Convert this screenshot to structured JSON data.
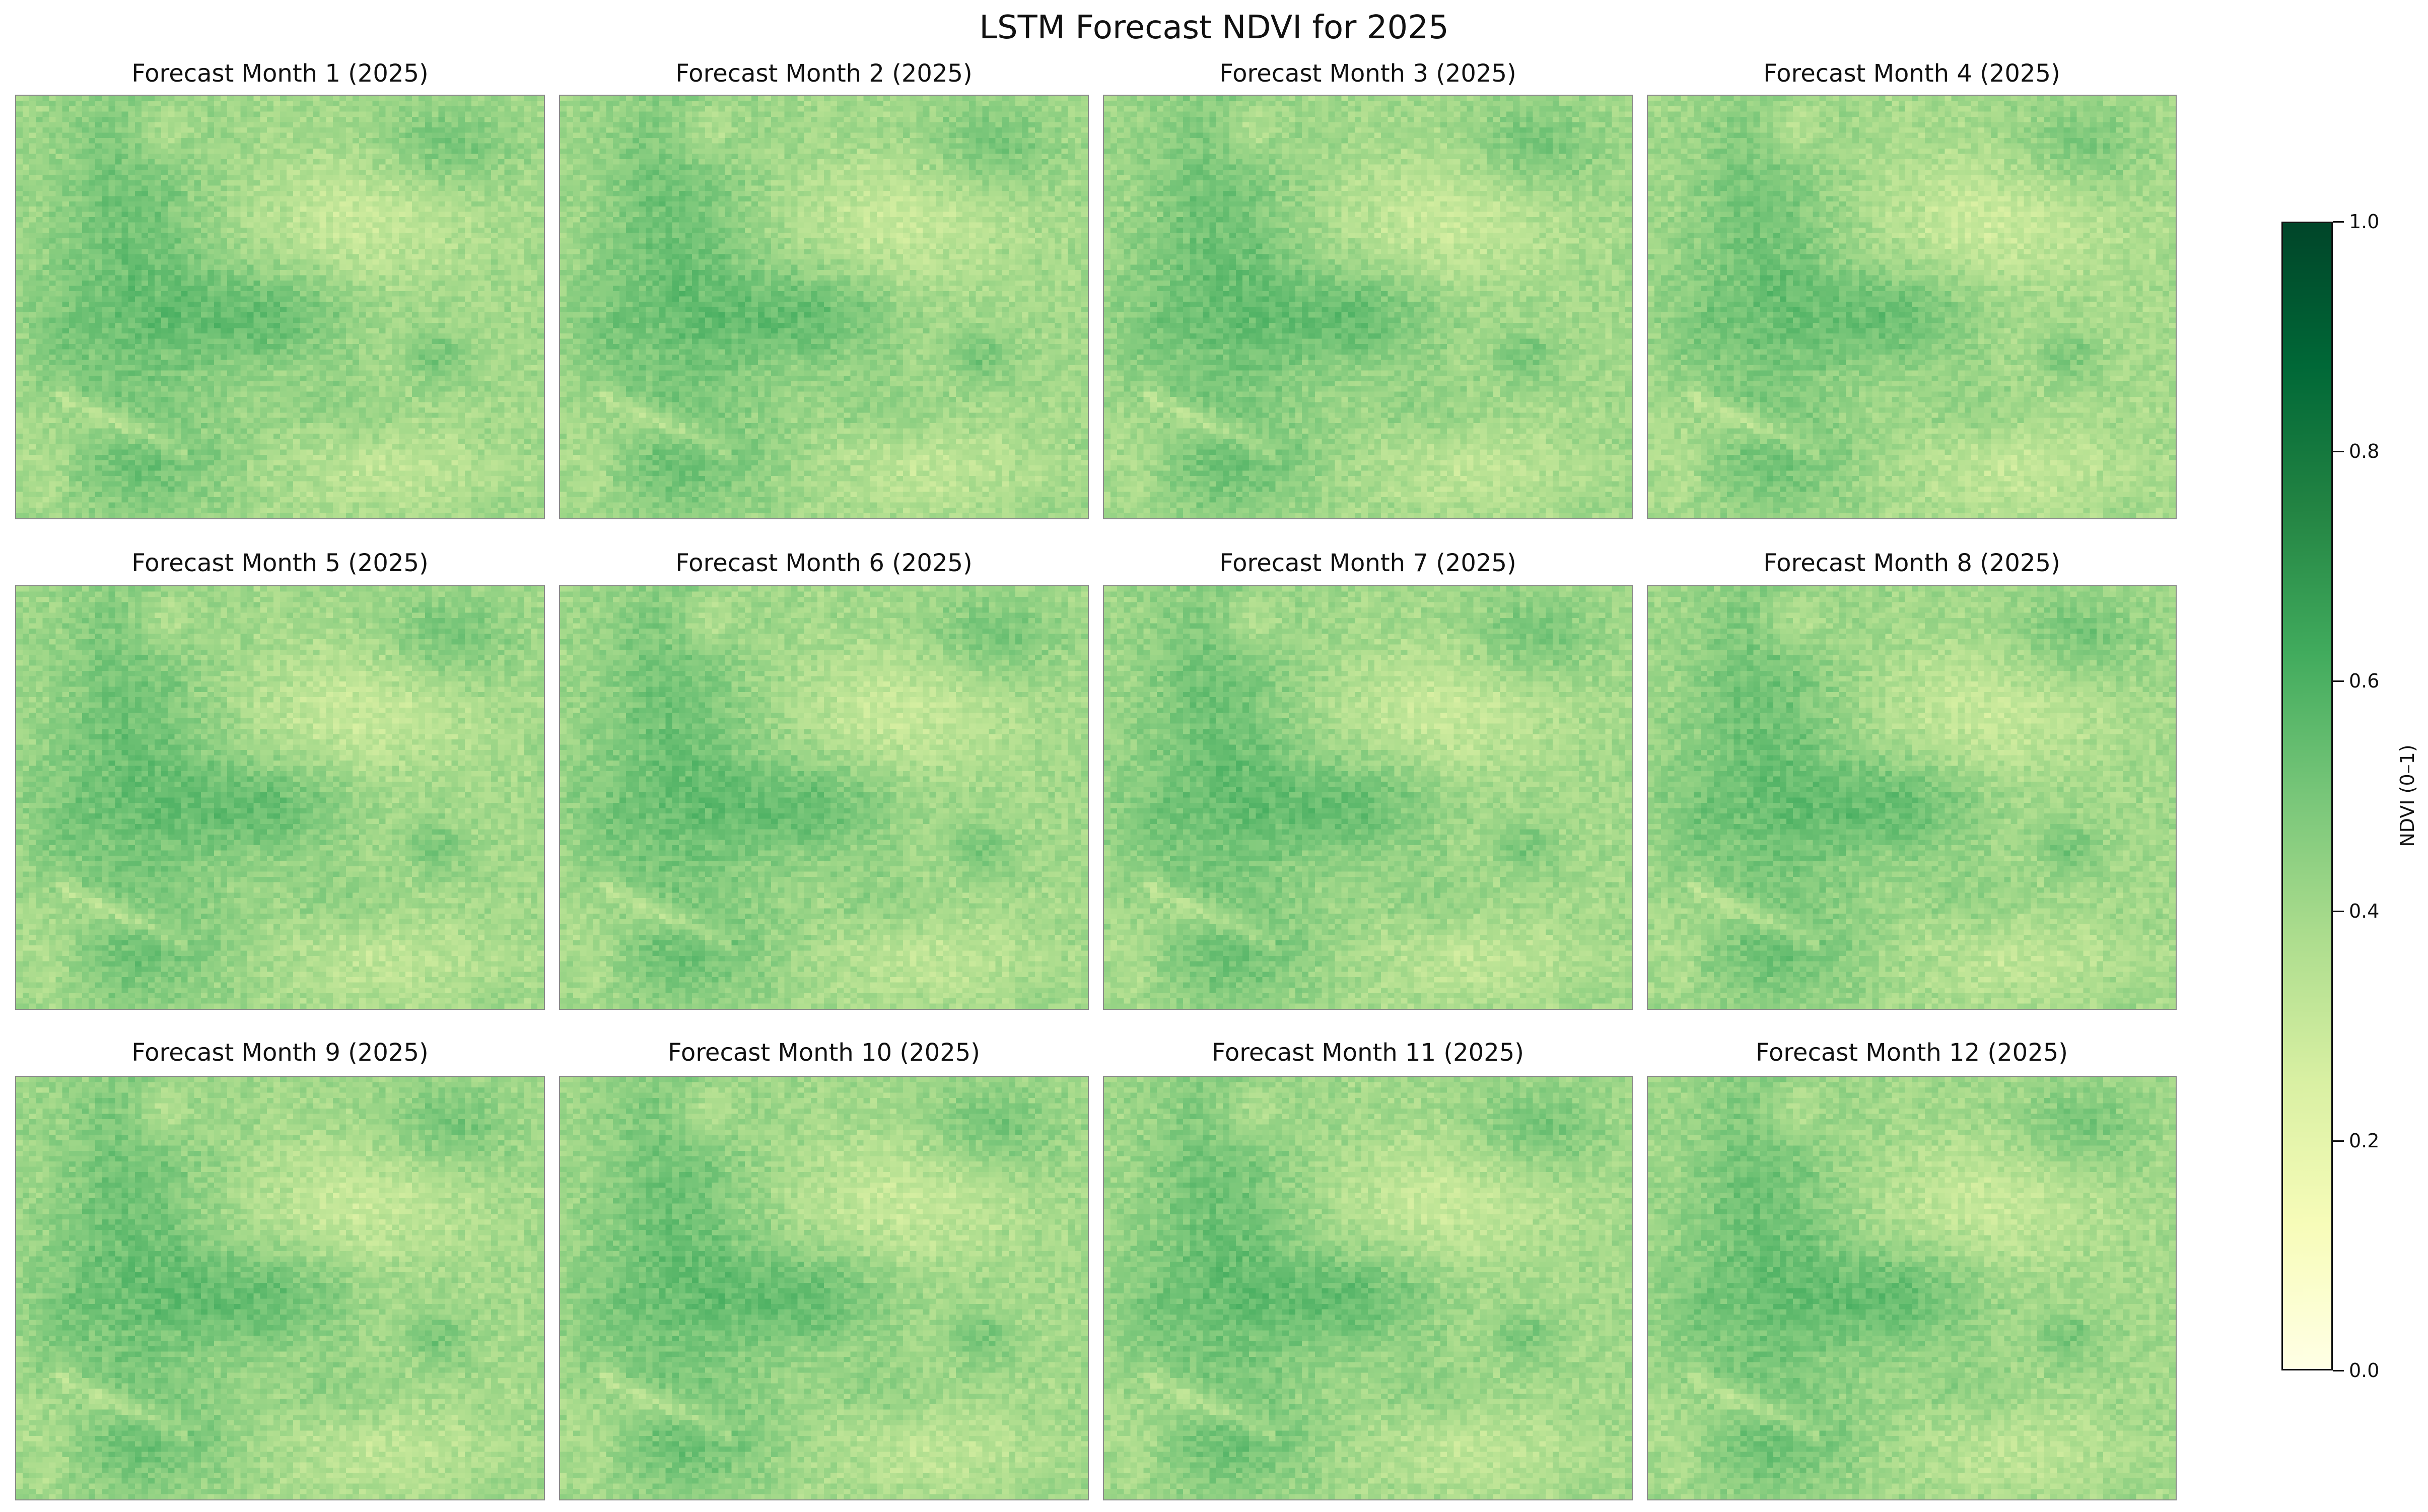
{
  "title": "LSTM Forecast NDVI for 2025",
  "chart_data": {
    "type": "heatmap",
    "title": "LSTM Forecast NDVI for 2025",
    "panels": [
      {
        "title": "Forecast Month 1 (2025)",
        "mean_ndvi": 0.46
      },
      {
        "title": "Forecast Month 2 (2025)",
        "mean_ndvi": 0.46
      },
      {
        "title": "Forecast Month 3 (2025)",
        "mean_ndvi": 0.46
      },
      {
        "title": "Forecast Month 4 (2025)",
        "mean_ndvi": 0.45
      },
      {
        "title": "Forecast Month 5 (2025)",
        "mean_ndvi": 0.46
      },
      {
        "title": "Forecast Month 6 (2025)",
        "mean_ndvi": 0.46
      },
      {
        "title": "Forecast Month 7 (2025)",
        "mean_ndvi": 0.46
      },
      {
        "title": "Forecast Month 8 (2025)",
        "mean_ndvi": 0.46
      },
      {
        "title": "Forecast Month 9 (2025)",
        "mean_ndvi": 0.46
      },
      {
        "title": "Forecast Month 10 (2025)",
        "mean_ndvi": 0.46
      },
      {
        "title": "Forecast Month 11 (2025)",
        "mean_ndvi": 0.46
      },
      {
        "title": "Forecast Month 12 (2025)",
        "mean_ndvi": 0.46
      }
    ],
    "colorbar": {
      "label": "NDVI (0–1)",
      "range": [
        0,
        1
      ],
      "ticks": [
        0.0,
        0.2,
        0.4,
        0.6,
        0.8,
        1.0
      ],
      "tick_labels": [
        "0.0",
        "0.2",
        "0.4",
        "0.6",
        "0.8",
        "1.0"
      ],
      "colormap": "YlGn",
      "colors": [
        "#ffffe5",
        "#f7fcb9",
        "#d9f0a3",
        "#addd8e",
        "#78c679",
        "#41ab5d",
        "#238443",
        "#006837",
        "#004529"
      ]
    }
  }
}
